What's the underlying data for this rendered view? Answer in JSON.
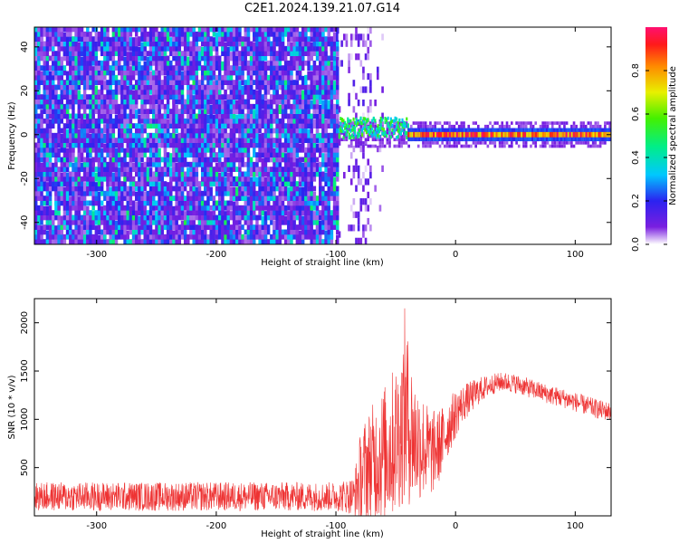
{
  "title": "C2E1.2024.139.21.07.G14",
  "chart_data": [
    {
      "type": "heatmap",
      "xlabel": "Height of straight line (km)",
      "ylabel": "Frequency (Hz)",
      "xlim": [
        -352,
        130
      ],
      "ylim": [
        -50,
        49
      ],
      "xticks": [
        -300,
        -200,
        -100,
        0,
        100
      ],
      "yticks": [
        -40,
        -20,
        0,
        20,
        40
      ],
      "colorbar": {
        "label": "Normalized spectral amplitude",
        "range": [
          0.0,
          1.0
        ],
        "ticks": [
          0.0,
          0.2,
          0.4,
          0.6,
          0.8
        ],
        "colormap": "rainbow"
      },
      "regions": [
        {
          "x": [
            -352,
            -98
          ],
          "pattern": "broadband noise across all frequencies",
          "amplitude": [
            0.05,
            0.35
          ]
        },
        {
          "x": [
            -98,
            -60
          ],
          "pattern": "sparse noise streaks near -85 and -75 km",
          "amplitude": [
            0.0,
            0.15
          ]
        },
        {
          "x": [
            -98,
            -40
          ],
          "pattern": "scattered tone near 0-5 Hz",
          "freq_center": 3,
          "amplitude": [
            0.3,
            0.6
          ]
        },
        {
          "x": [
            -40,
            130
          ],
          "pattern": "narrow tone centered at 0 Hz",
          "freq_center": 0,
          "amplitude": [
            0.7,
            1.0
          ]
        }
      ],
      "grid": false
    },
    {
      "type": "line",
      "xlabel": "Height of straight line (km)",
      "ylabel": "SNR (10 * v/v)",
      "xlim": [
        -352,
        130
      ],
      "ylim": [
        0,
        2250
      ],
      "xticks": [
        -300,
        -200,
        -100,
        0,
        100
      ],
      "yticks": [
        500,
        1000,
        1500,
        2000
      ],
      "color": "#ee3333",
      "series": [
        {
          "x": [
            -352,
            -300,
            -250,
            -200,
            -150,
            -100,
            -85,
            -80,
            -75,
            -70,
            -65,
            -60,
            -55,
            -50,
            -45,
            -42,
            -40,
            -35,
            -30,
            -25,
            -20,
            -15,
            -10,
            -5,
            0,
            5,
            10,
            15,
            20,
            25,
            30,
            35,
            40,
            50,
            60,
            70,
            80,
            90,
            100,
            110,
            120,
            130
          ],
          "y": [
            200,
            200,
            200,
            200,
            200,
            200,
            210,
            380,
            500,
            550,
            600,
            650,
            700,
            800,
            900,
            1150,
            1000,
            800,
            750,
            700,
            650,
            700,
            800,
            950,
            1050,
            1150,
            1200,
            1250,
            1300,
            1330,
            1360,
            1380,
            1390,
            1370,
            1330,
            1290,
            1250,
            1220,
            1180,
            1140,
            1100,
            1080
          ],
          "noise": [
            150,
            150,
            150,
            150,
            150,
            150,
            200,
            450,
            550,
            600,
            650,
            700,
            750,
            800,
            800,
            1100,
            900,
            700,
            600,
            500,
            450,
            400,
            350,
            300,
            250,
            200,
            180,
            160,
            140,
            120,
            110,
            100,
            100,
            100,
            100,
            100,
            100,
            100,
            100,
            100,
            100,
            100
          ]
        }
      ],
      "grid": false
    }
  ]
}
